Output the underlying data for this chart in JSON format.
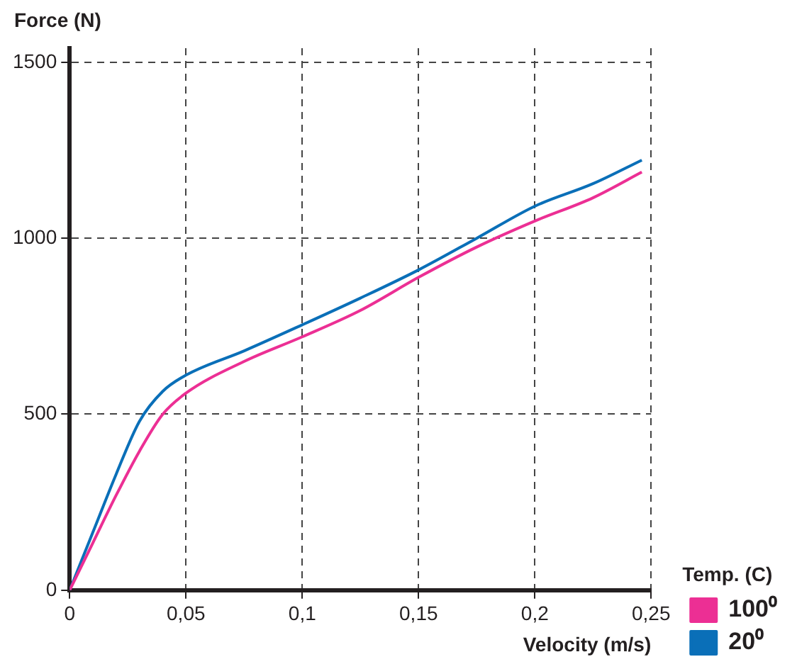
{
  "chart_data": {
    "type": "line",
    "ylabel": "Force (N)",
    "xlabel": "Velocity (m/s)",
    "legend_title": "Temp. (C)",
    "legend": "bottom right",
    "grid": true,
    "marker": "none",
    "line_style": "solid",
    "xlim": [
      0,
      0.25
    ],
    "xticks": [
      0,
      {
        "value": 0.05,
        "label": "0,05"
      },
      {
        "value": 0.1,
        "label": "0,1"
      },
      {
        "value": 0.15,
        "label": "0,15"
      },
      {
        "value": 0.2,
        "label": "0,2"
      },
      {
        "value": 0.25,
        "label": "0,25"
      }
    ],
    "ylim": [
      0,
      1540
    ],
    "yticks": [
      0,
      500,
      1000,
      1500
    ],
    "x": [
      0,
      0.01,
      0.02,
      0.03,
      0.04,
      0.05,
      0.075,
      0.1,
      0.125,
      0.15,
      0.175,
      0.2,
      0.225,
      0.246
    ],
    "series": [
      {
        "name": "100⁰",
        "color": "#ec2f94",
        "values": [
          0,
          135,
          270,
          395,
          500,
          560,
          650,
          720,
          795,
          889,
          975,
          1049,
          1115,
          1188
        ]
      },
      {
        "name": "20⁰",
        "color": "#0a6fb8",
        "values": [
          0,
          165,
          330,
          480,
          565,
          611,
          680,
          754,
          830,
          910,
          1000,
          1091,
          1155,
          1222
        ]
      }
    ]
  }
}
